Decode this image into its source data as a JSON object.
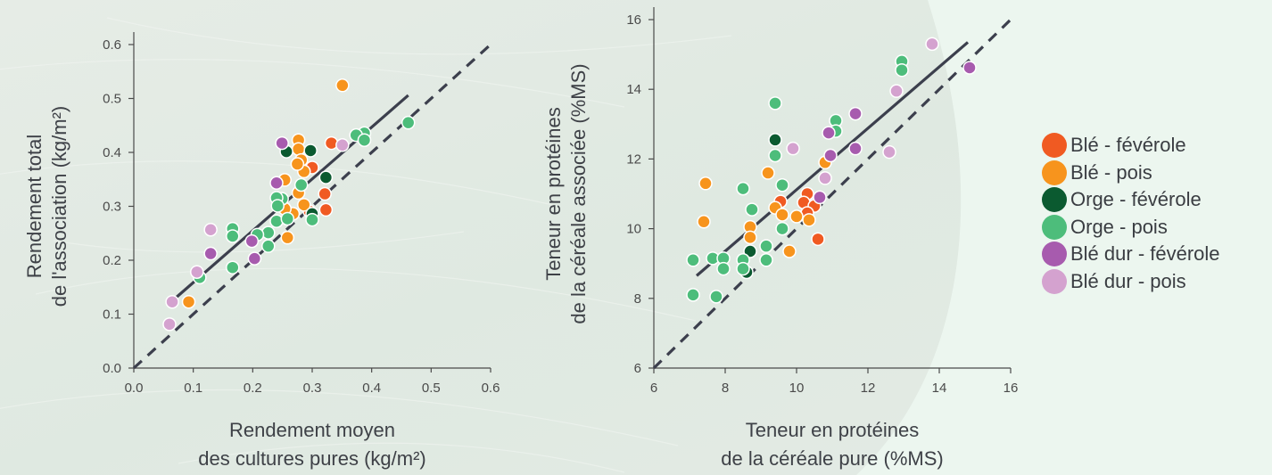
{
  "colors": {
    "ble_feverole": "#f05a22",
    "ble_pois": "#f7941d",
    "orge_feverole": "#0b5a30",
    "orge_pois": "#4dbd7b",
    "bledur_feverole": "#a75bae",
    "bledur_pois": "#d4a2cf",
    "fit_line": "#3c3f4d",
    "identity_line": "#3c3f4d"
  },
  "legend": [
    {
      "key": "ble_feverole",
      "label": "Blé - févérole"
    },
    {
      "key": "ble_pois",
      "label": "Blé - pois"
    },
    {
      "key": "orge_feverole",
      "label": "Orge - févérole"
    },
    {
      "key": "orge_pois",
      "label": "Orge - pois"
    },
    {
      "key": "bledur_feverole",
      "label": "Blé dur - févérole"
    },
    {
      "key": "bledur_pois",
      "label": "Blé dur - pois"
    }
  ],
  "chart_data": [
    {
      "type": "scatter",
      "xlabel": [
        "Rendement moyen",
        "des cultures pures (kg/m²)"
      ],
      "ylabel": [
        "Rendement total",
        "de l'association (kg/m²)"
      ],
      "xlim": [
        0,
        0.65
      ],
      "ylim": [
        0,
        0.65
      ],
      "xticks": [
        "0.0",
        "0.1",
        "0.2",
        "0.3",
        "0.4",
        "0.5",
        "0.6"
      ],
      "yticks": [
        "0.0",
        "0.1",
        "0.2",
        "0.3",
        "0.4",
        "0.5",
        "0.6"
      ],
      "fit_line": [
        [
          0.07,
          0.135
        ],
        [
          0.5,
          0.548
        ]
      ],
      "identity_line": [
        [
          0,
          0
        ],
        [
          0.65,
          0.65
        ]
      ],
      "series": [
        {
          "key": "ble_feverole",
          "points": [
            [
              0.36,
              0.452
            ],
            [
              0.325,
              0.403
            ],
            [
              0.348,
              0.35
            ],
            [
              0.35,
              0.318
            ],
            [
              0.32,
              0.315
            ]
          ]
        },
        {
          "key": "ble_pois",
          "points": [
            [
              0.38,
              0.568
            ],
            [
              0.3,
              0.458
            ],
            [
              0.3,
              0.44
            ],
            [
              0.305,
              0.418
            ],
            [
              0.31,
              0.395
            ],
            [
              0.298,
              0.41
            ],
            [
              0.275,
              0.378
            ],
            [
              0.3,
              0.352
            ],
            [
              0.31,
              0.328
            ],
            [
              0.29,
              0.31
            ],
            [
              0.275,
              0.32
            ],
            [
              0.28,
              0.262
            ],
            [
              0.1,
              0.133
            ]
          ]
        },
        {
          "key": "orge_feverole",
          "points": [
            [
              0.278,
              0.435
            ],
            [
              0.322,
              0.437
            ],
            [
              0.35,
              0.383
            ],
            [
              0.325,
              0.31
            ]
          ]
        },
        {
          "key": "orge_pois",
          "points": [
            [
              0.5,
              0.493
            ],
            [
              0.42,
              0.472
            ],
            [
              0.405,
              0.468
            ],
            [
              0.42,
              0.458
            ],
            [
              0.305,
              0.368
            ],
            [
              0.27,
              0.34
            ],
            [
              0.26,
              0.342
            ],
            [
              0.262,
              0.326
            ],
            [
              0.26,
              0.295
            ],
            [
              0.28,
              0.3
            ],
            [
              0.325,
              0.298
            ],
            [
              0.245,
              0.272
            ],
            [
              0.225,
              0.268
            ],
            [
              0.245,
              0.245
            ],
            [
              0.18,
              0.28
            ],
            [
              0.18,
              0.265
            ],
            [
              0.18,
              0.202
            ],
            [
              0.12,
              0.182
            ]
          ]
        },
        {
          "key": "bledur_feverole",
          "points": [
            [
              0.27,
              0.452
            ],
            [
              0.26,
              0.372
            ],
            [
              0.215,
              0.255
            ],
            [
              0.22,
              0.22
            ],
            [
              0.14,
              0.23
            ]
          ]
        },
        {
          "key": "bledur_pois",
          "points": [
            [
              0.38,
              0.448
            ],
            [
              0.14,
              0.278
            ],
            [
              0.115,
              0.193
            ],
            [
              0.07,
              0.133
            ],
            [
              0.065,
              0.088
            ]
          ]
        }
      ]
    },
    {
      "type": "scatter",
      "xlabel": [
        "Teneur en protéines",
        "de la céréale pure (%MS)"
      ],
      "ylabel": [
        "Teneur en protéines",
        "de la céréale associée (%MS)"
      ],
      "xlim": [
        6,
        16
      ],
      "ylim": [
        6,
        16
      ],
      "xticks": [
        "6",
        "8",
        "10",
        "12",
        "14",
        "16"
      ],
      "yticks": [
        "6",
        "8",
        "10",
        "12",
        "14",
        "16"
      ],
      "fit_line": [
        [
          7.2,
          8.65
        ],
        [
          14.8,
          15.35
        ]
      ],
      "identity_line": [
        [
          6,
          6
        ],
        [
          16,
          16
        ]
      ],
      "series": [
        {
          "key": "ble_feverole",
          "points": [
            [
              9.55,
              10.78
            ],
            [
              10.3,
              11.0
            ],
            [
              10.2,
              10.75
            ],
            [
              10.5,
              10.65
            ],
            [
              10.3,
              10.45
            ],
            [
              10.6,
              9.7
            ]
          ]
        },
        {
          "key": "ble_pois",
          "points": [
            [
              7.45,
              11.3
            ],
            [
              7.4,
              10.2
            ],
            [
              9.2,
              11.6
            ],
            [
              10.8,
              11.9
            ],
            [
              9.4,
              10.6
            ],
            [
              9.6,
              10.4
            ],
            [
              10.0,
              10.35
            ],
            [
              10.35,
              10.25
            ],
            [
              8.7,
              10.05
            ],
            [
              8.7,
              9.75
            ],
            [
              9.8,
              9.35
            ]
          ]
        },
        {
          "key": "orge_feverole",
          "points": [
            [
              9.4,
              12.55
            ],
            [
              8.7,
              9.35
            ],
            [
              8.6,
              8.75
            ]
          ]
        },
        {
          "key": "orge_pois",
          "points": [
            [
              9.4,
              13.6
            ],
            [
              12.95,
              14.8
            ],
            [
              12.95,
              14.55
            ],
            [
              11.1,
              13.1
            ],
            [
              11.1,
              12.8
            ],
            [
              9.4,
              12.1
            ],
            [
              9.6,
              11.25
            ],
            [
              8.5,
              11.15
            ],
            [
              8.75,
              10.55
            ],
            [
              9.6,
              10.0
            ],
            [
              9.15,
              9.5
            ],
            [
              9.15,
              9.1
            ],
            [
              8.5,
              9.1
            ],
            [
              7.1,
              9.1
            ],
            [
              7.65,
              9.15
            ],
            [
              7.95,
              9.15
            ],
            [
              7.95,
              8.85
            ],
            [
              8.5,
              8.85
            ],
            [
              7.1,
              8.1
            ],
            [
              7.75,
              8.05
            ]
          ]
        },
        {
          "key": "bledur_feverole",
          "points": [
            [
              14.85,
              14.62
            ],
            [
              11.65,
              13.3
            ],
            [
              10.9,
              12.75
            ],
            [
              10.95,
              12.1
            ],
            [
              11.65,
              12.3
            ],
            [
              10.65,
              10.9
            ]
          ]
        },
        {
          "key": "bledur_pois",
          "points": [
            [
              13.8,
              15.3
            ],
            [
              12.8,
              13.95
            ],
            [
              12.6,
              12.2
            ],
            [
              9.9,
              12.3
            ],
            [
              10.8,
              11.45
            ]
          ]
        }
      ]
    }
  ]
}
